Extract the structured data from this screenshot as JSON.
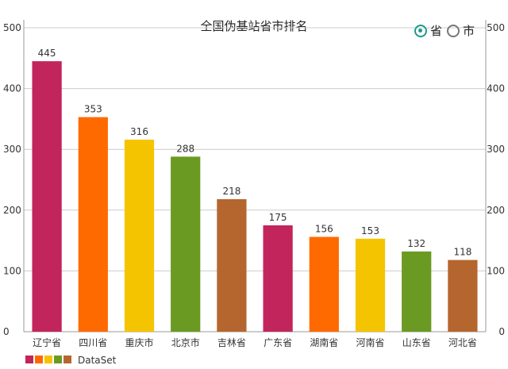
{
  "chart_data": {
    "type": "bar",
    "title": "全国伪基站省市排名",
    "categories": [
      "辽宁省",
      "四川省",
      "重庆市",
      "北京市",
      "吉林省",
      "广东省",
      "湖南省",
      "河南省",
      "山东省",
      "河北省"
    ],
    "series": [
      {
        "name": "DataSet",
        "values": [
          445,
          353,
          316,
          288,
          218,
          175,
          156,
          153,
          132,
          118
        ]
      }
    ],
    "colors": [
      "#c2255c",
      "#ff6a00",
      "#f5c400",
      "#6b9a22",
      "#b5662f"
    ],
    "ylim": [
      0,
      500
    ],
    "yticks": [
      0,
      100,
      200,
      300,
      400,
      500
    ],
    "grid": true,
    "legend": "bottom-left"
  },
  "toggle": {
    "options": [
      {
        "label": "省",
        "checked": true
      },
      {
        "label": "市",
        "checked": false
      }
    ]
  }
}
